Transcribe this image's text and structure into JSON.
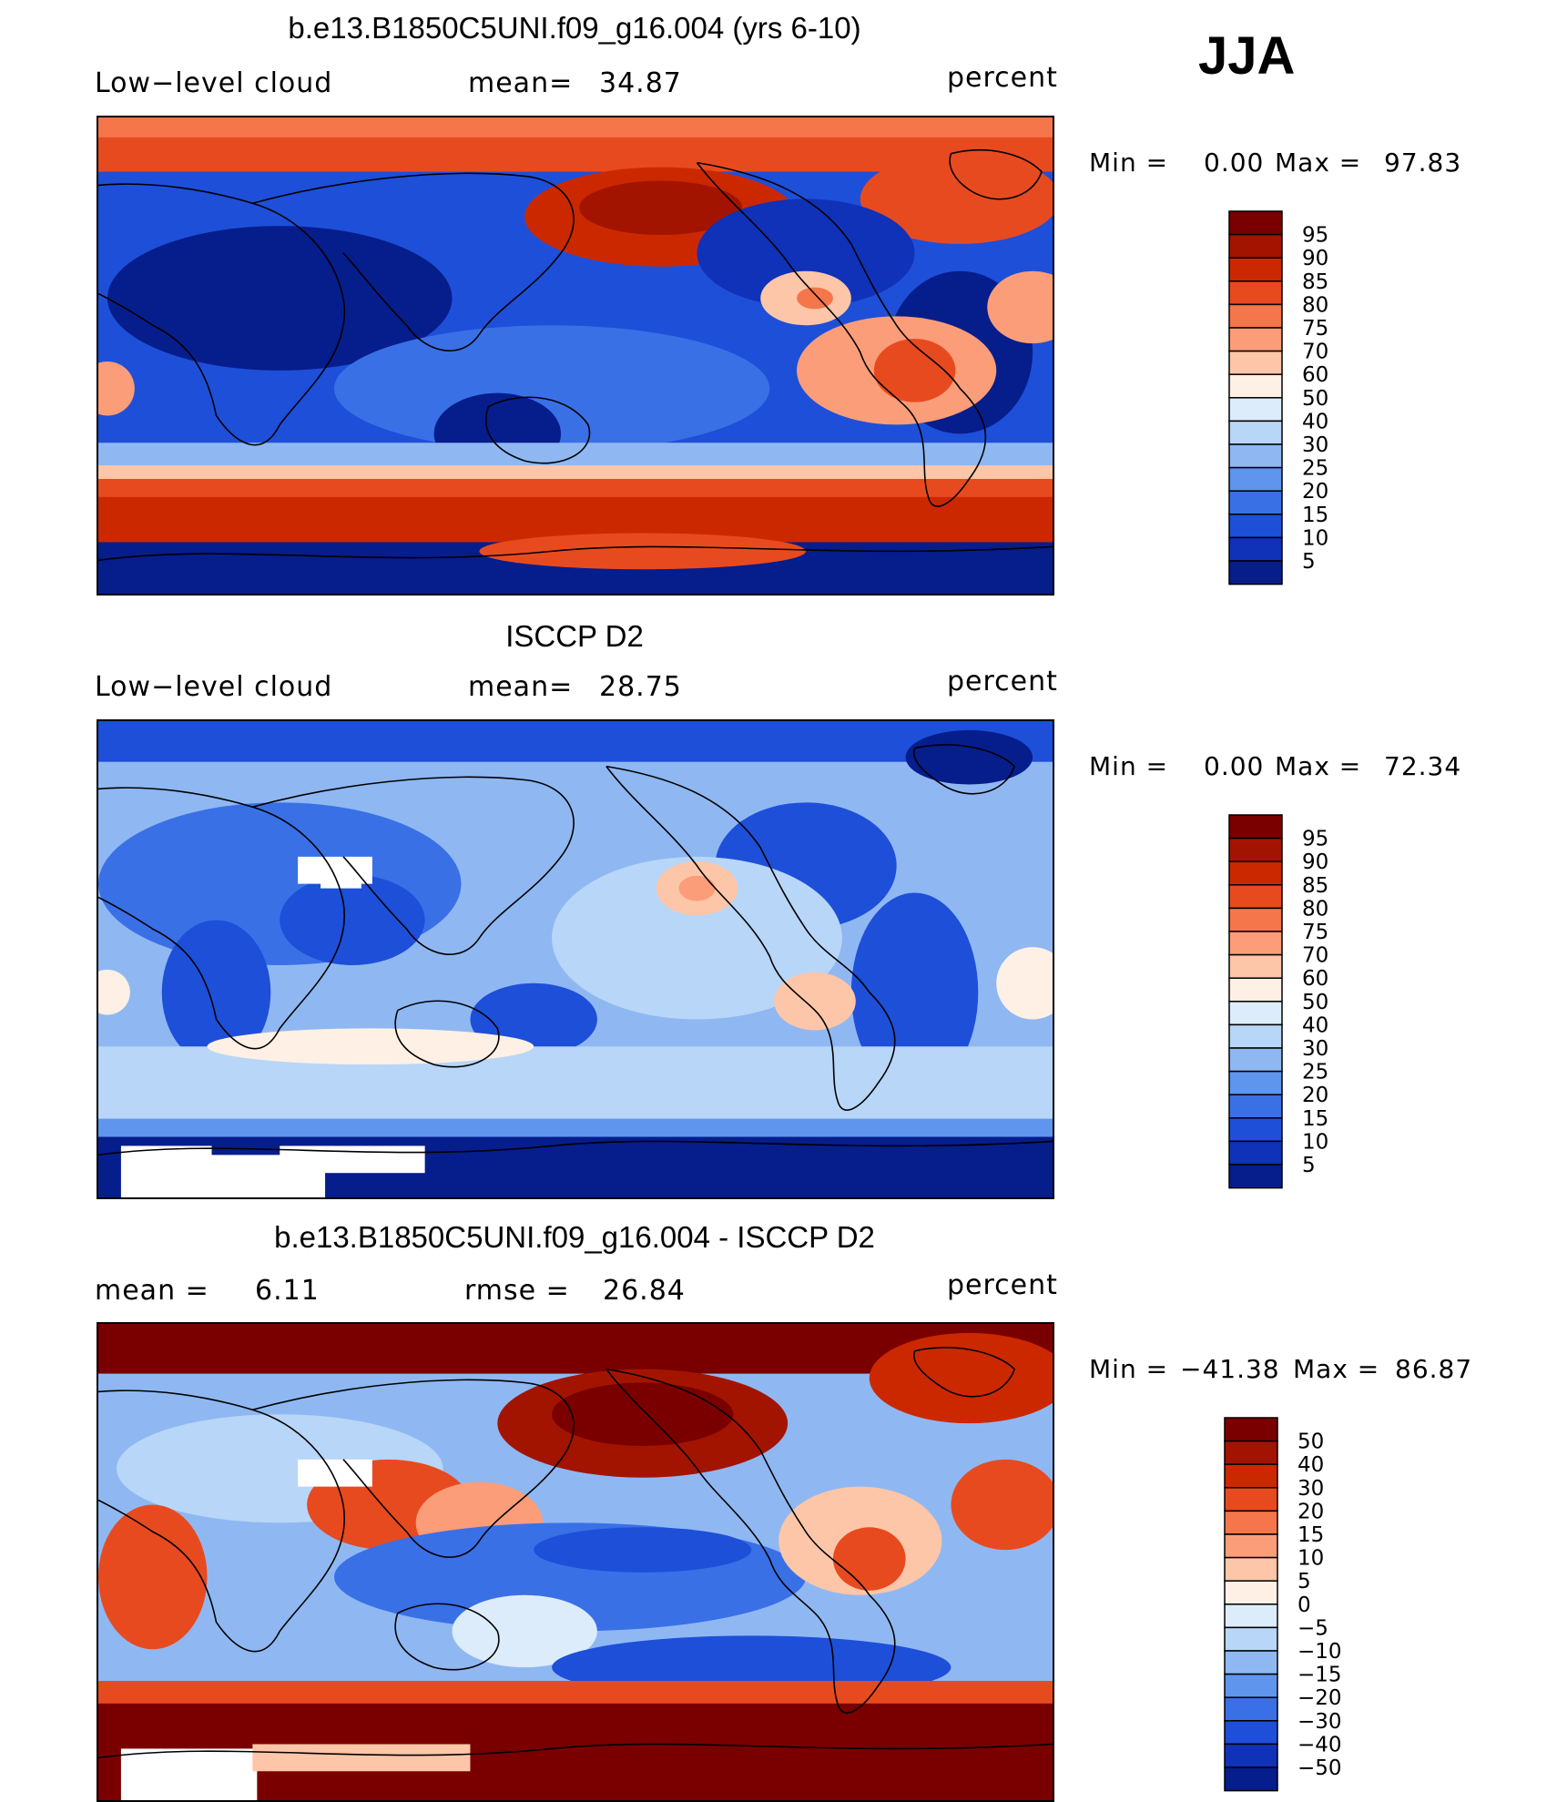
{
  "season": "JJA",
  "colors": {
    "warm_scale": [
      "#7a0000",
      "#a31400",
      "#cc2800",
      "#e84a1f",
      "#f5764a",
      "#fb9d78",
      "#fdc6a8",
      "#fef0e4"
    ],
    "cool_scale": [
      "#dcecfb",
      "#b8d6f7",
      "#8fb8f2",
      "#5f95ec",
      "#3a70e6",
      "#1e4fd9",
      "#0f32b8",
      "#061d8c"
    ],
    "diff_scale": [
      "#7a0000",
      "#a31400",
      "#cc2800",
      "#e84a1f",
      "#f5764a",
      "#fb9d78",
      "#fdc6a8",
      "#fef0e4",
      "#dcecfb",
      "#b8d6f7",
      "#8fb8f2",
      "#5f95ec",
      "#3a70e6",
      "#1e4fd9",
      "#0f32b8",
      "#061d8c"
    ]
  },
  "panels": [
    {
      "title": "b.e13.B1850C5UNI.f09_g16.004 (yrs 6-10)",
      "left_label": "Low−level cloud",
      "mid_label": "mean=",
      "mid_value": "34.87",
      "units": "percent",
      "min_label": "Min  =",
      "min_value": "0.00",
      "max_label": "Max  =",
      "max_value": "97.83",
      "map_icon": "world-map-model-cloud",
      "colorbar_ticks": [
        "95",
        "90",
        "85",
        "80",
        "75",
        "70",
        "60",
        "50",
        "40",
        "30",
        "25",
        "20",
        "15",
        "10",
        "5"
      ]
    },
    {
      "title": "ISCCP D2",
      "left_label": "Low−level cloud",
      "mid_label": "mean=",
      "mid_value": "28.75",
      "units": "percent",
      "min_label": "Min  =",
      "min_value": "0.00",
      "max_label": "Max  =",
      "max_value": "72.34",
      "map_icon": "world-map-observed-cloud",
      "colorbar_ticks": [
        "95",
        "90",
        "85",
        "80",
        "75",
        "70",
        "60",
        "50",
        "40",
        "30",
        "25",
        "20",
        "15",
        "10",
        "5"
      ]
    },
    {
      "title": "b.e13.B1850C5UNI.f09_g16.004 - ISCCP D2",
      "left_label": "mean =",
      "left_value": "6.11",
      "mid_label": "rmse  =",
      "mid_value": "26.84",
      "units": "percent",
      "min_label": "Min  =",
      "min_value": "−41.38",
      "max_label": "Max  =",
      "max_value": "86.87",
      "map_icon": "world-map-difference",
      "colorbar_ticks": [
        "50",
        "40",
        "30",
        "20",
        "15",
        "10",
        "5",
        "0",
        "−5",
        "−10",
        "−15",
        "−20",
        "−30",
        "−40",
        "−50"
      ]
    }
  ],
  "chart_data": [
    {
      "type": "heatmap",
      "title": "b.e13.B1850C5UNI.f09_g16.004 (yrs 6-10)",
      "variable": "Low−level cloud",
      "units": "percent",
      "season": "JJA",
      "mean": 34.87,
      "min": 0.0,
      "max": 97.83,
      "contour_levels": [
        5,
        10,
        15,
        20,
        25,
        30,
        40,
        50,
        60,
        70,
        75,
        80,
        85,
        90,
        95
      ]
    },
    {
      "type": "heatmap",
      "title": "ISCCP D2",
      "variable": "Low−level cloud",
      "units": "percent",
      "season": "JJA",
      "mean": 28.75,
      "min": 0.0,
      "max": 72.34,
      "contour_levels": [
        5,
        10,
        15,
        20,
        25,
        30,
        40,
        50,
        60,
        70,
        75,
        80,
        85,
        90,
        95
      ]
    },
    {
      "type": "heatmap",
      "title": "b.e13.B1850C5UNI.f09_g16.004 - ISCCP D2",
      "units": "percent",
      "season": "JJA",
      "mean": 6.11,
      "rmse": 26.84,
      "min": -41.38,
      "max": 86.87,
      "contour_levels": [
        -50,
        -40,
        -30,
        -20,
        -15,
        -10,
        -5,
        0,
        5,
        10,
        15,
        20,
        30,
        40,
        50
      ]
    }
  ]
}
